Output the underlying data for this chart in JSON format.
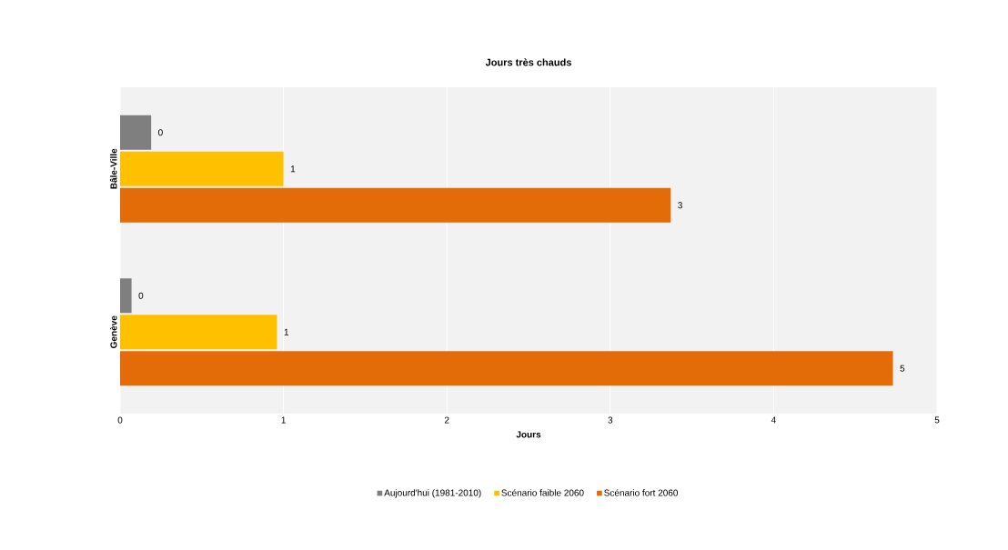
{
  "chart_data": {
    "type": "bar",
    "orientation": "horizontal",
    "title": "Jours très chauds",
    "xlabel": "Jours",
    "categories": [
      "Bâle-Ville",
      "Genève"
    ],
    "series": [
      {
        "name": "Aujourd'hui (1981-2010)",
        "color": "#7f7f7f",
        "values": [
          0.19,
          0.07
        ],
        "value_labels": [
          "0",
          "0"
        ]
      },
      {
        "name": "Scénario faible 2060",
        "color": "#ffc000",
        "values": [
          1.0,
          0.96
        ],
        "value_labels": [
          "1",
          "1"
        ]
      },
      {
        "name": "Scénario fort 2060",
        "color": "#e36c09",
        "values": [
          3.37,
          4.73
        ],
        "value_labels": [
          "3",
          "5"
        ]
      }
    ],
    "xlim": [
      0,
      5
    ],
    "xticks": [
      0,
      1,
      2,
      3,
      4,
      5
    ],
    "grid": "x",
    "legend": "bottom"
  }
}
